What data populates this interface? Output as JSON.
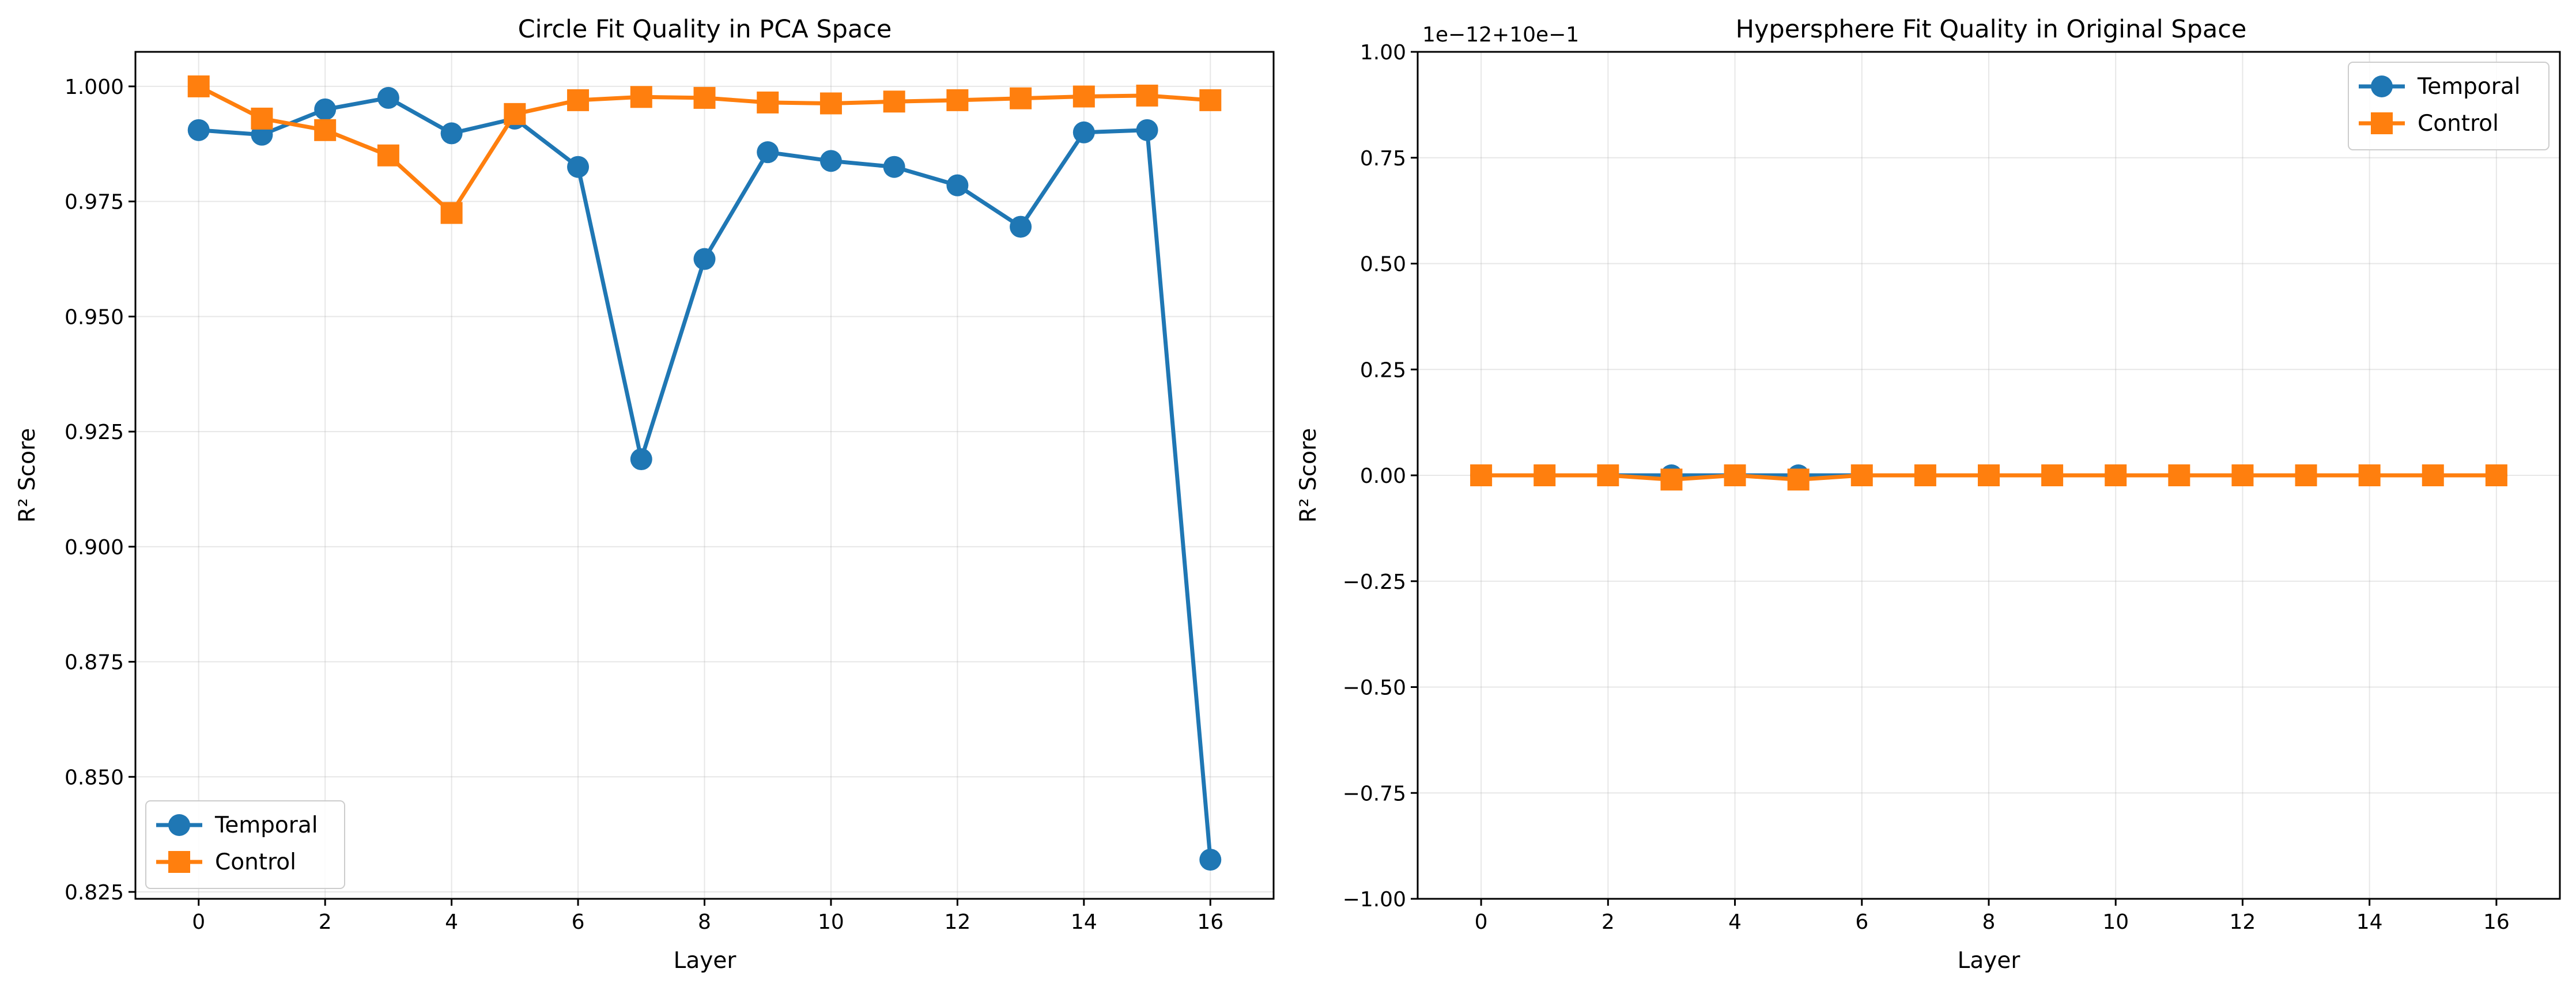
{
  "chart_data": [
    {
      "type": "line",
      "title": "Circle Fit Quality in PCA Space",
      "xlabel": "Layer",
      "ylabel": "R² Score",
      "xlim": [
        -1,
        17
      ],
      "ylim": [
        0.8235,
        1.0075
      ],
      "xticks": [
        0,
        2,
        4,
        6,
        8,
        10,
        12,
        14,
        16
      ],
      "yticks": [
        0.825,
        0.85,
        0.875,
        0.9,
        0.925,
        0.95,
        0.975,
        1.0
      ],
      "ytick_labels": [
        "0.825",
        "0.850",
        "0.875",
        "0.900",
        "0.925",
        "0.950",
        "0.975",
        "1.000"
      ],
      "xtick_labels": [
        "0",
        "2",
        "4",
        "6",
        "8",
        "10",
        "12",
        "14",
        "16"
      ],
      "grid": true,
      "legend_position": "bottom-left",
      "x": [
        0,
        1,
        2,
        3,
        4,
        5,
        6,
        7,
        8,
        9,
        10,
        11,
        12,
        13,
        14,
        15,
        16
      ],
      "series": [
        {
          "name": "Temporal",
          "marker": "circle",
          "color": "#1f77b4",
          "values": [
            0.9905,
            0.9895,
            0.995,
            0.9975,
            0.9898,
            0.993,
            0.9825,
            0.919,
            0.9625,
            0.9857,
            0.9838,
            0.9825,
            0.9785,
            0.9695,
            0.99,
            0.9905,
            0.832
          ]
        },
        {
          "name": "Control",
          "marker": "square",
          "color": "#ff7f0e",
          "values": [
            1.0,
            0.993,
            0.9905,
            0.985,
            0.9725,
            0.994,
            0.997,
            0.9977,
            0.9975,
            0.9965,
            0.9963,
            0.9967,
            0.997,
            0.9974,
            0.9978,
            0.998,
            0.997
          ]
        }
      ]
    },
    {
      "type": "line",
      "title": "Hypersphere Fit Quality in Original Space",
      "xlabel": "Layer",
      "ylabel": "R² Score",
      "offset_text": "1e−12+10e−1",
      "xlim": [
        -1,
        17
      ],
      "ylim": [
        -1.0,
        1.0
      ],
      "xticks": [
        0,
        2,
        4,
        6,
        8,
        10,
        12,
        14,
        16
      ],
      "yticks": [
        -1.0,
        -0.75,
        -0.5,
        -0.25,
        0.0,
        0.25,
        0.5,
        0.75,
        1.0
      ],
      "ytick_labels": [
        "−1.00",
        "−0.75",
        "−0.50",
        "−0.25",
        "0.00",
        "0.25",
        "0.50",
        "0.75",
        "1.00"
      ],
      "xtick_labels": [
        "0",
        "2",
        "4",
        "6",
        "8",
        "10",
        "12",
        "14",
        "16"
      ],
      "grid": true,
      "legend_position": "top-right",
      "x": [
        0,
        1,
        2,
        3,
        4,
        5,
        6,
        7,
        8,
        9,
        10,
        11,
        12,
        13,
        14,
        15,
        16
      ],
      "series": [
        {
          "name": "Temporal",
          "marker": "circle",
          "color": "#1f77b4",
          "values": [
            0,
            0,
            0,
            0,
            0,
            0,
            0,
            0,
            0,
            0,
            0,
            0,
            0,
            0,
            0,
            0,
            0
          ]
        },
        {
          "name": "Control",
          "marker": "square",
          "color": "#ff7f0e",
          "values": [
            0,
            0,
            0,
            -0.01,
            0,
            -0.01,
            0,
            0,
            0,
            0,
            0,
            0,
            0,
            0,
            0,
            0,
            0
          ]
        }
      ]
    }
  ]
}
